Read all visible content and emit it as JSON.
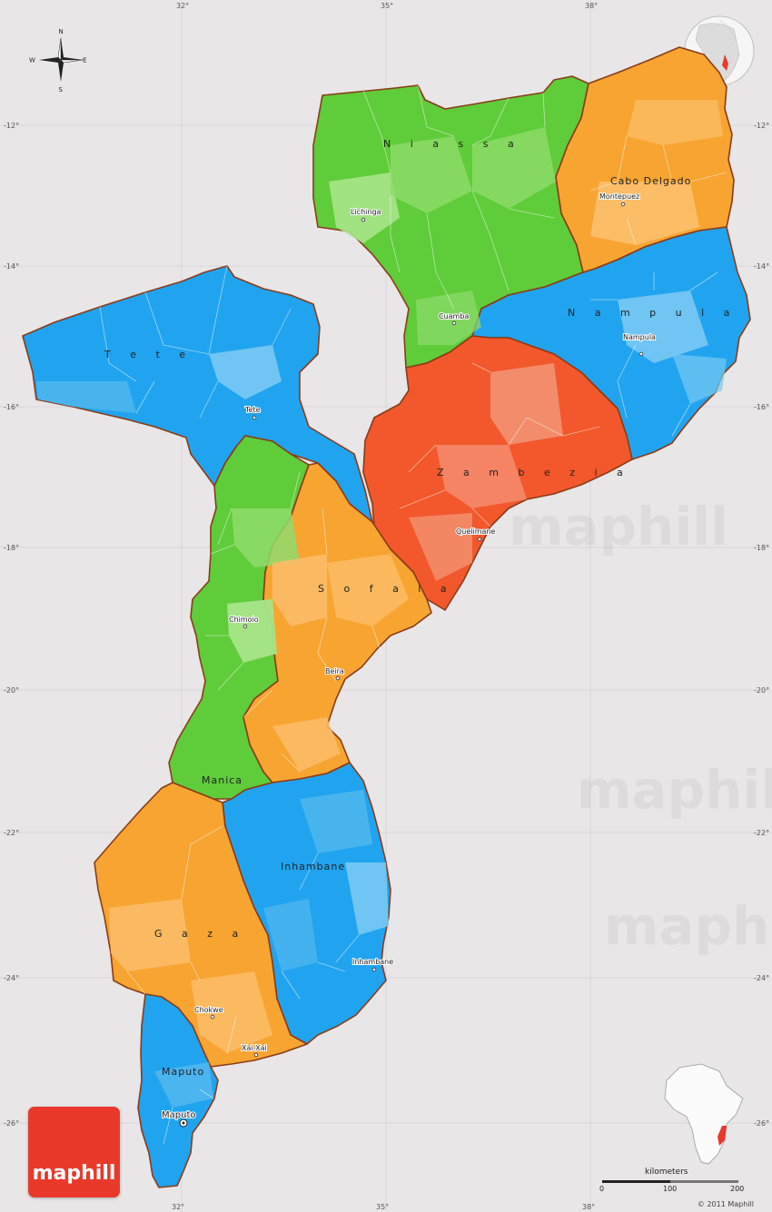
{
  "map": {
    "longitudes": [
      "32°",
      "35°",
      "38°"
    ],
    "latitudes": [
      "-12°",
      "-14°",
      "-16°",
      "-18°",
      "-20°",
      "-22°",
      "-24°",
      "-26°"
    ],
    "compass": {
      "n": "N",
      "s": "S",
      "e": "E",
      "w": "W"
    },
    "provinces": [
      {
        "name": "N i a s s a",
        "color": "#5fcc3a"
      },
      {
        "name": "Cabo Delgado",
        "color": "#f8a431"
      },
      {
        "name": "N a m p u l a",
        "color": "#21a4ef"
      },
      {
        "name": "T e t e",
        "color": "#21a4ef"
      },
      {
        "name": "Z a m b e z i a",
        "color": "#f2582b"
      },
      {
        "name": "S o f a l a",
        "color": "#f8a431"
      },
      {
        "name": "Manica",
        "color": "#5fcc3a"
      },
      {
        "name": "Inhambane",
        "color": "#21a4ef"
      },
      {
        "name": "G a z a",
        "color": "#f8a431"
      },
      {
        "name": "Maputo",
        "color": "#21a4ef"
      }
    ],
    "cities": {
      "lichinga": "Lichinga",
      "montepuez": "Montepuez",
      "cuamba": "Cuamba",
      "nampula": "Nampula",
      "tete": "Tete",
      "quelimane": "Quelimane",
      "chimoio": "Chimoio",
      "beira": "Beira",
      "inhambane": "Inhambane",
      "chokwe": "Chokwe",
      "xai_xai": "Xai-Xai",
      "maputo": "Maputo"
    },
    "watermark": "maphill"
  },
  "logo": "maphill",
  "scale": {
    "title": "kilometers",
    "ticks": [
      "0",
      "100",
      "200"
    ]
  },
  "copyright": "© 2011 Maphill"
}
